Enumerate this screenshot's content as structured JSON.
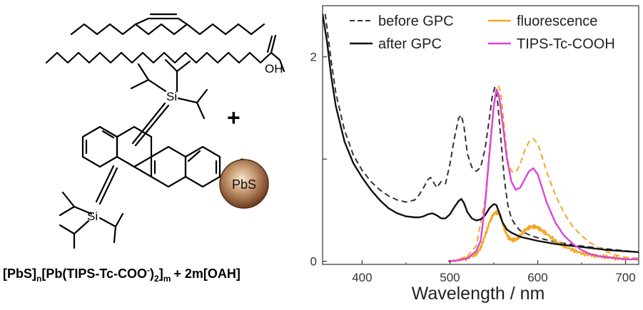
{
  "scheme": {
    "plus_sign": "+",
    "si_label": "Si",
    "oh_label": "OH",
    "o_label": "O",
    "minus_sign": "⊖",
    "pbs_label": "PbS",
    "formula": {
      "p1": "[PbS]",
      "s1": "n",
      "p2": "[Pb(TIPS-Tc-COO",
      "s2": "-",
      "p3": ")",
      "s3": "2",
      "p4": "]",
      "s4": "m",
      "p5": "+ 2m[OAH]"
    },
    "colors": {
      "pbs_core": "#6b3a1e",
      "pbs_edge": "#c79a70",
      "bond": "#000000"
    }
  },
  "chart_data": {
    "type": "line",
    "title": "",
    "xlabel": "Wavelength / nm",
    "ylabel": "",
    "xlim": [
      355,
      715
    ],
    "ylim": [
      -0.03,
      2.5
    ],
    "xticks": [
      400,
      500,
      600,
      700
    ],
    "yticks": [
      0,
      1,
      2
    ],
    "ytick_labels": [
      "0",
      "",
      "2"
    ],
    "grid": false,
    "legend": {
      "placement": "top",
      "columns": 2
    },
    "series": [
      {
        "name": "before GPC",
        "color": "#333333",
        "style": "dashed",
        "x": [
          358,
          365,
          370,
          380,
          390,
          400,
          410,
          420,
          430,
          440,
          450,
          460,
          465,
          470,
          475,
          478,
          481,
          485,
          490,
          495,
          500,
          505,
          510,
          513,
          516,
          520,
          525,
          530,
          535,
          540,
          545,
          548,
          551,
          553,
          555,
          558,
          562,
          566,
          570,
          575,
          580,
          590,
          600,
          620,
          650,
          680,
          715
        ],
        "y": [
          2.42,
          1.95,
          1.65,
          1.28,
          1.04,
          0.89,
          0.78,
          0.7,
          0.64,
          0.6,
          0.58,
          0.6,
          0.65,
          0.72,
          0.8,
          0.82,
          0.78,
          0.72,
          0.78,
          0.76,
          0.95,
          1.2,
          1.4,
          1.43,
          1.32,
          1.05,
          0.92,
          0.88,
          0.92,
          1.1,
          1.4,
          1.6,
          1.7,
          1.67,
          1.5,
          1.2,
          0.8,
          0.55,
          0.42,
          0.35,
          0.3,
          0.26,
          0.23,
          0.19,
          0.15,
          0.12,
          0.09
        ]
      },
      {
        "name": "fluorescence",
        "color": "#f5a623",
        "style": "solid",
        "noisy": true,
        "x": [
          498,
          510,
          520,
          530,
          535,
          540,
          545,
          550,
          555,
          558,
          562,
          566,
          570,
          575,
          580,
          585,
          590,
          595,
          600,
          605,
          610,
          620,
          630,
          640,
          650,
          660,
          670,
          680,
          690,
          700,
          715
        ],
        "y": [
          0.0,
          0.01,
          0.03,
          0.07,
          0.13,
          0.25,
          0.38,
          0.47,
          0.48,
          0.43,
          0.32,
          0.24,
          0.21,
          0.21,
          0.25,
          0.3,
          0.33,
          0.34,
          0.33,
          0.3,
          0.27,
          0.2,
          0.15,
          0.11,
          0.08,
          0.06,
          0.05,
          0.04,
          0.03,
          0.02,
          0.02
        ]
      },
      {
        "name": "fluorescence",
        "show_in_legend": false,
        "color": "#f5a623",
        "style": "dashed",
        "x": [
          510,
          520,
          530,
          540,
          545,
          550,
          555,
          558,
          562,
          566,
          570,
          575,
          580,
          585,
          590,
          595,
          600,
          605,
          610,
          620,
          630,
          640,
          650,
          660,
          670,
          680,
          690,
          700,
          715
        ],
        "y": [
          0.02,
          0.05,
          0.15,
          0.6,
          1.1,
          1.55,
          1.72,
          1.65,
          1.3,
          0.98,
          0.88,
          0.87,
          0.95,
          1.08,
          1.17,
          1.2,
          1.15,
          1.02,
          0.88,
          0.65,
          0.47,
          0.34,
          0.25,
          0.18,
          0.13,
          0.09,
          0.06,
          0.04,
          0.03
        ]
      },
      {
        "name": "after GPC",
        "color": "#111111",
        "style": "solid",
        "x": [
          355,
          360,
          365,
          370,
          380,
          390,
          400,
          410,
          420,
          430,
          440,
          450,
          460,
          465,
          470,
          475,
          480,
          485,
          490,
          495,
          500,
          505,
          510,
          513,
          516,
          520,
          525,
          530,
          535,
          540,
          545,
          550,
          553,
          556,
          560,
          565,
          570,
          580,
          600,
          620,
          650,
          680,
          715
        ],
        "y": [
          2.42,
          2.15,
          1.8,
          1.52,
          1.17,
          0.96,
          0.82,
          0.7,
          0.6,
          0.52,
          0.47,
          0.44,
          0.43,
          0.43,
          0.44,
          0.46,
          0.47,
          0.45,
          0.42,
          0.42,
          0.46,
          0.53,
          0.59,
          0.61,
          0.57,
          0.48,
          0.42,
          0.4,
          0.41,
          0.45,
          0.52,
          0.56,
          0.55,
          0.48,
          0.38,
          0.31,
          0.28,
          0.24,
          0.2,
          0.17,
          0.14,
          0.11,
          0.09
        ]
      },
      {
        "name": "TIPS-Tc-COOH",
        "color": "#d946d8",
        "style": "solid",
        "x": [
          498,
          510,
          520,
          530,
          535,
          540,
          545,
          550,
          553,
          556,
          560,
          565,
          570,
          575,
          580,
          585,
          590,
          595,
          600,
          605,
          610,
          620,
          630,
          640,
          650,
          660,
          670,
          680,
          690,
          700,
          715
        ],
        "y": [
          0.0,
          0.01,
          0.03,
          0.1,
          0.2,
          0.55,
          1.05,
          1.52,
          1.68,
          1.62,
          1.35,
          1.0,
          0.78,
          0.7,
          0.72,
          0.8,
          0.88,
          0.91,
          0.85,
          0.72,
          0.58,
          0.38,
          0.25,
          0.17,
          0.11,
          0.07,
          0.05,
          0.04,
          0.03,
          0.02,
          0.02
        ]
      }
    ]
  }
}
